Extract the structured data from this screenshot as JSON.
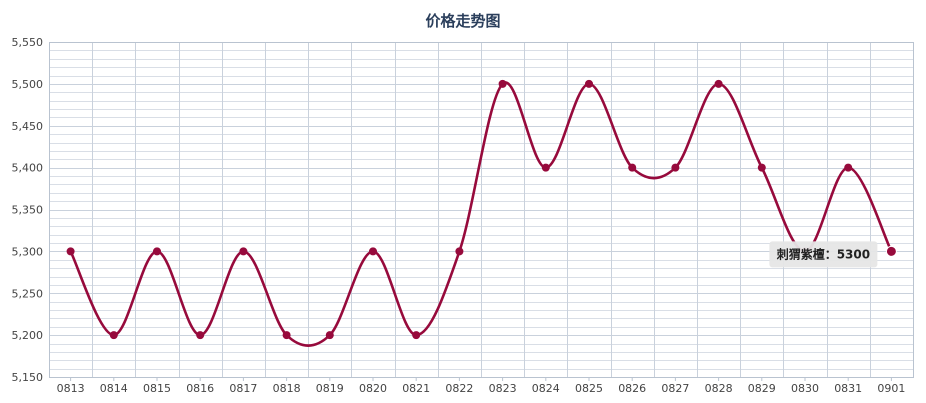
{
  "chart_data": {
    "type": "line",
    "title": "价格走势图",
    "xlabel": "",
    "ylabel": "",
    "categories": [
      "0813",
      "0814",
      "0815",
      "0816",
      "0817",
      "0818",
      "0819",
      "0820",
      "0821",
      "0822",
      "0823",
      "0824",
      "0825",
      "0826",
      "0827",
      "0828",
      "0829",
      "0830",
      "0831",
      "0901"
    ],
    "series": [
      {
        "values": [
          5300,
          5200,
          5300,
          5200,
          5300,
          5200,
          5200,
          5300,
          5200,
          5300,
          5500,
          5400,
          5500,
          5400,
          5400,
          5500,
          5400,
          5300,
          5400,
          5300
        ]
      }
    ],
    "ylim": [
      5150,
      5550
    ],
    "yticks": [
      "5,150",
      "5,200",
      "5,250",
      "5,300",
      "5,350",
      "5,400",
      "5,450",
      "5,500",
      "5,550"
    ],
    "grid": true,
    "smooth": true,
    "tooltip": {
      "label": "刺猬紫檀：5300"
    },
    "colors": {
      "line": "#970a3c",
      "grid": "#d9dee6",
      "grid_v": "#c9d1dc",
      "axis": "#b9c3d0",
      "tooltip_bg": "#e6e6e6"
    }
  }
}
